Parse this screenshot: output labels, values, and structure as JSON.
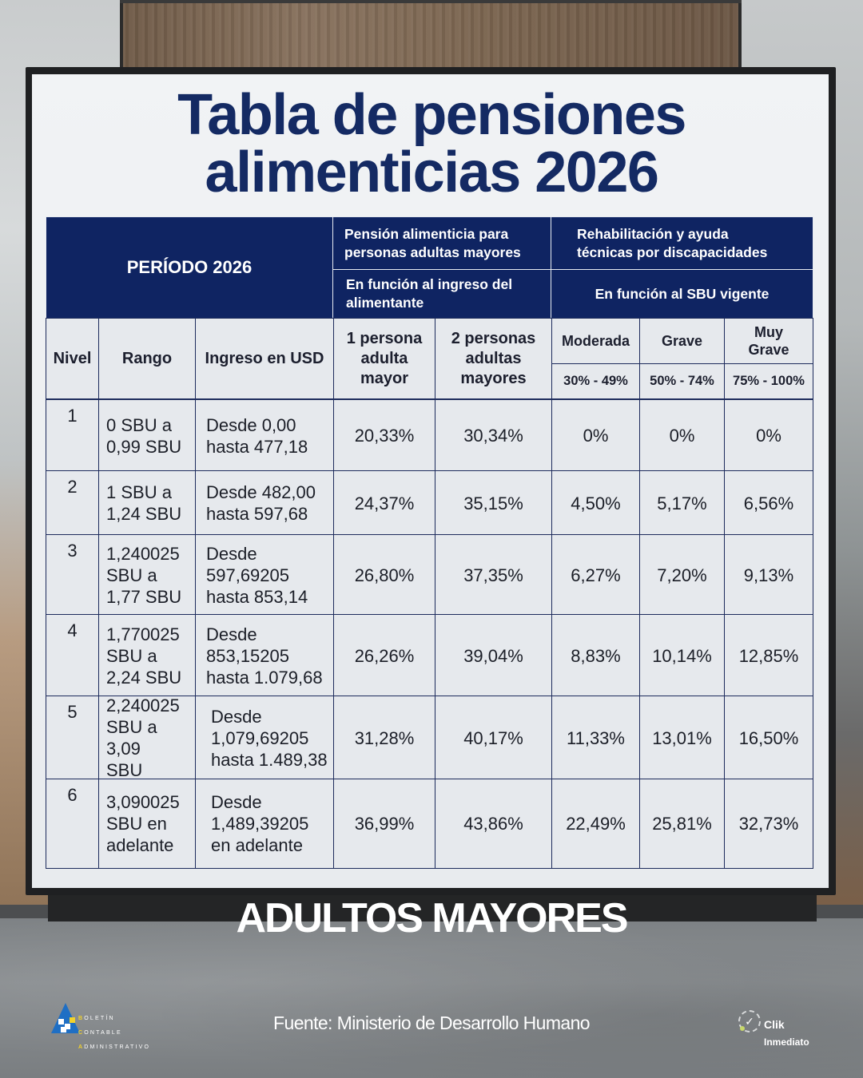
{
  "title": {
    "line1": "Tabla de pensiones",
    "line2": "alimenticias 2026"
  },
  "table": {
    "header": {
      "period": "PERÍODO 2026",
      "group_pension": "Pensión alimenticia para\npersonas adultas mayores",
      "group_pension_sub": "En función al ingreso del\nalimentante",
      "group_rehab": "Rehabilitación y ayuda\ntécnicas por discapacidades",
      "group_rehab_sub": "En función al SBU vigente"
    },
    "columns": {
      "nivel": "Nivel",
      "rango": "Rango",
      "ingreso": "Ingreso en USD",
      "one_person": "1 persona\nadulta\nmayor",
      "two_persons": "2 personas\nadultas\nmayores",
      "moderada": "Moderada",
      "grave": "Grave",
      "muy_grave": "Muy\nGrave",
      "moderada_range": "30% - 49%",
      "grave_range": "50% - 74%",
      "muy_grave_range": "75% - 100%"
    },
    "rows": [
      {
        "nivel": "1",
        "rango": "0 SBU a\n0,99 SBU",
        "ingreso": "Desde 0,00\nhasta 477,18",
        "one": "20,33%",
        "two": "30,34%",
        "moderada": "0%",
        "grave": "0%",
        "muy_grave": "0%"
      },
      {
        "nivel": "2",
        "rango": "1 SBU a\n1,24 SBU",
        "ingreso": "Desde 482,00\nhasta 597,68",
        "one": "24,37%",
        "two": "35,15%",
        "moderada": "4,50%",
        "grave": "5,17%",
        "muy_grave": "6,56%"
      },
      {
        "nivel": "3",
        "rango": "1,240025\nSBU a\n1,77 SBU",
        "ingreso": "Desde\n597,69205\nhasta 853,14",
        "one": "26,80%",
        "two": "37,35%",
        "moderada": "6,27%",
        "grave": "7,20%",
        "muy_grave": "9,13%"
      },
      {
        "nivel": "4",
        "rango": "1,770025\nSBU  a\n2,24 SBU",
        "ingreso": "Desde\n853,15205\nhasta 1.079,68",
        "one": "26,26%",
        "two": "39,04%",
        "moderada": "8,83%",
        "grave": "10,14%",
        "muy_grave": "12,85%"
      },
      {
        "nivel": "5",
        "rango": "2,240025\nSBU a 3,09\nSBU",
        "ingreso": "Desde\n1,079,69205\nhasta 1.489,38",
        "one": "31,28%",
        "two": "40,17%",
        "moderada": "11,33%",
        "grave": "13,01%",
        "muy_grave": "16,50%"
      },
      {
        "nivel": "6",
        "rango": "3,090025\nSBU en\nadelante",
        "ingreso": "Desde\n1,489,39205\nen adelante",
        "one": "36,99%",
        "two": "43,86%",
        "moderada": "22,49%",
        "grave": "25,81%",
        "muy_grave": "32,73%"
      }
    ]
  },
  "footer": {
    "section_label": "ADULTOS MAYORES",
    "source": "Fuente:  Ministerio de Desarrollo Humano",
    "logo_left": {
      "initials": [
        "B",
        "C",
        "A"
      ],
      "words": [
        "OLETÍN",
        "ONTABLE",
        "DMINISTRATIVO"
      ]
    },
    "logo_right": {
      "line1": "Clik",
      "line2": "Inmediato"
    }
  },
  "colors": {
    "navy": "#0f2462",
    "title_navy": "#142a63",
    "board": "#e8ebee",
    "grid_line": "#1d2b5c",
    "logo_blue": "#1f6fc4",
    "logo_yellow": "#f2d22c"
  }
}
